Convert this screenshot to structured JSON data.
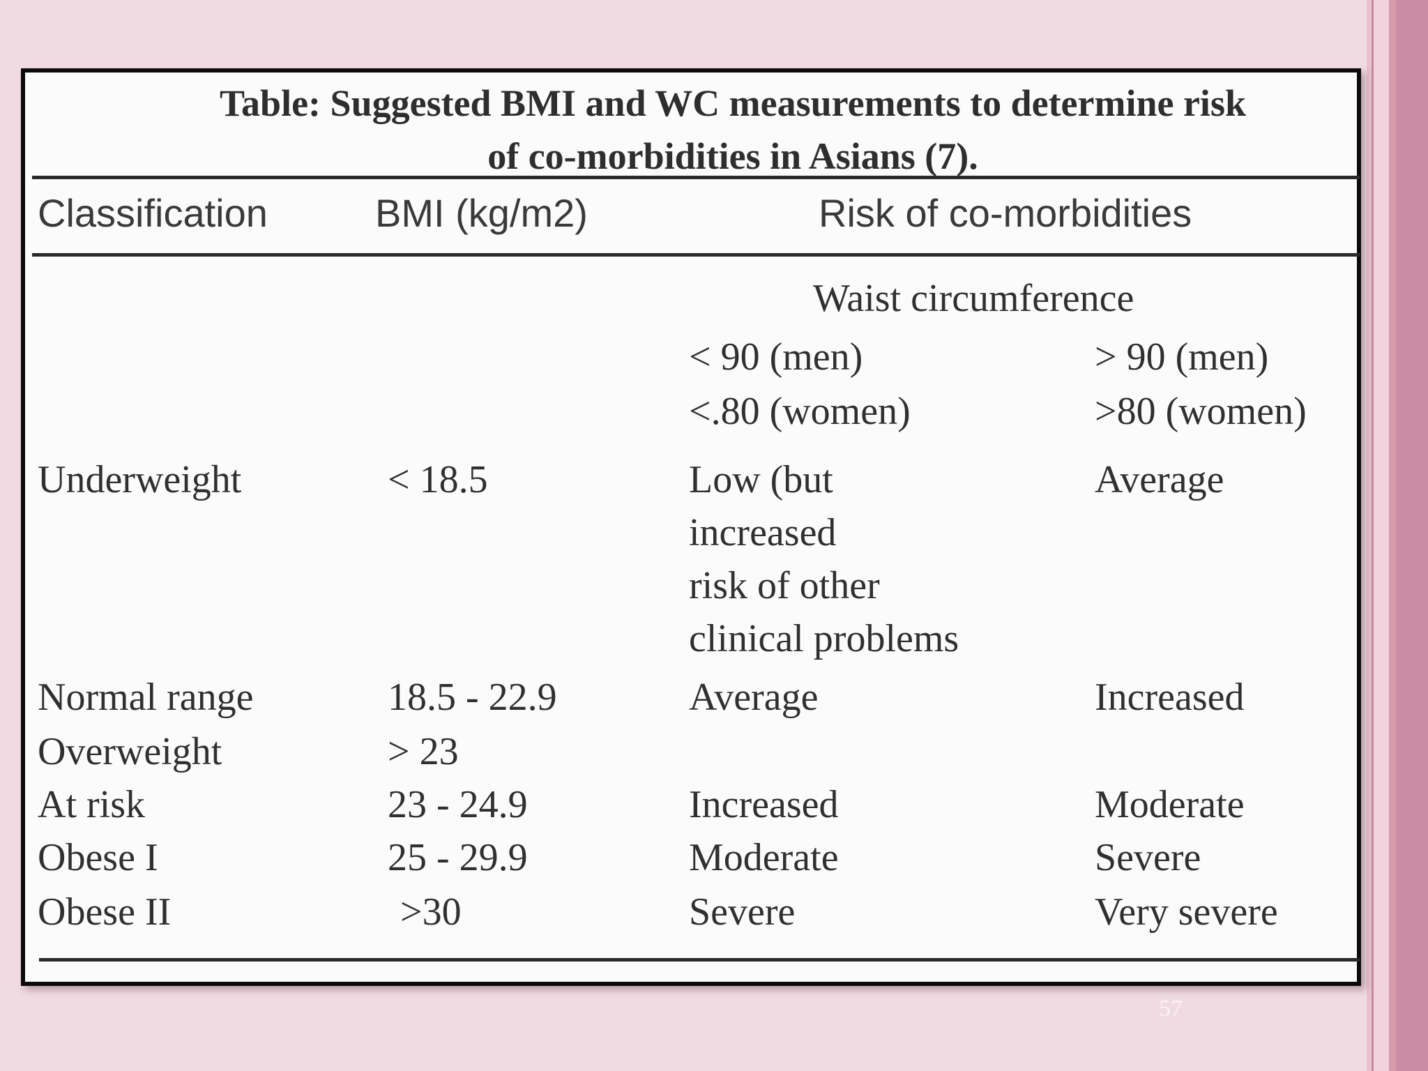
{
  "table": {
    "title_line1": "Table: Suggested BMI and WC measurements to determine risk",
    "title_line2": "of co-morbidities in Asians (7).",
    "headers": {
      "classification": "Classification",
      "bmi": "BMI (kg/m2)",
      "risk": "Risk of co-morbidities"
    },
    "waist_circumference": "Waist circumference",
    "wc_low": {
      "men": "< 90 (men)",
      "women": "<.80 (women)"
    },
    "wc_high": {
      "men": "> 90 (men)",
      "women": ">80 (women)"
    },
    "rows": [
      {
        "classification": "Underweight",
        "bmi": "< 18.5",
        "risk_low": "Low (but\nincreased\nrisk of other\nclinical problems",
        "risk_high": "Average"
      },
      {
        "classification": "Normal range",
        "bmi": "18.5 - 22.9",
        "risk_low": "Average",
        "risk_high": "Increased"
      },
      {
        "classification": "Overweight",
        "bmi": "> 23",
        "risk_low": "",
        "risk_high": ""
      },
      {
        "classification": "At risk",
        "bmi": "23 - 24.9",
        "risk_low": "Increased",
        "risk_high": "Moderate"
      },
      {
        "classification": "Obese I",
        "bmi": "25 - 29.9",
        "risk_low": "Moderate",
        "risk_high": "Severe"
      },
      {
        "classification": "Obese II",
        "bmi": ">30",
        "risk_low": "Severe",
        "risk_high": "Very severe"
      }
    ]
  },
  "slide": {
    "page_number": "57"
  }
}
